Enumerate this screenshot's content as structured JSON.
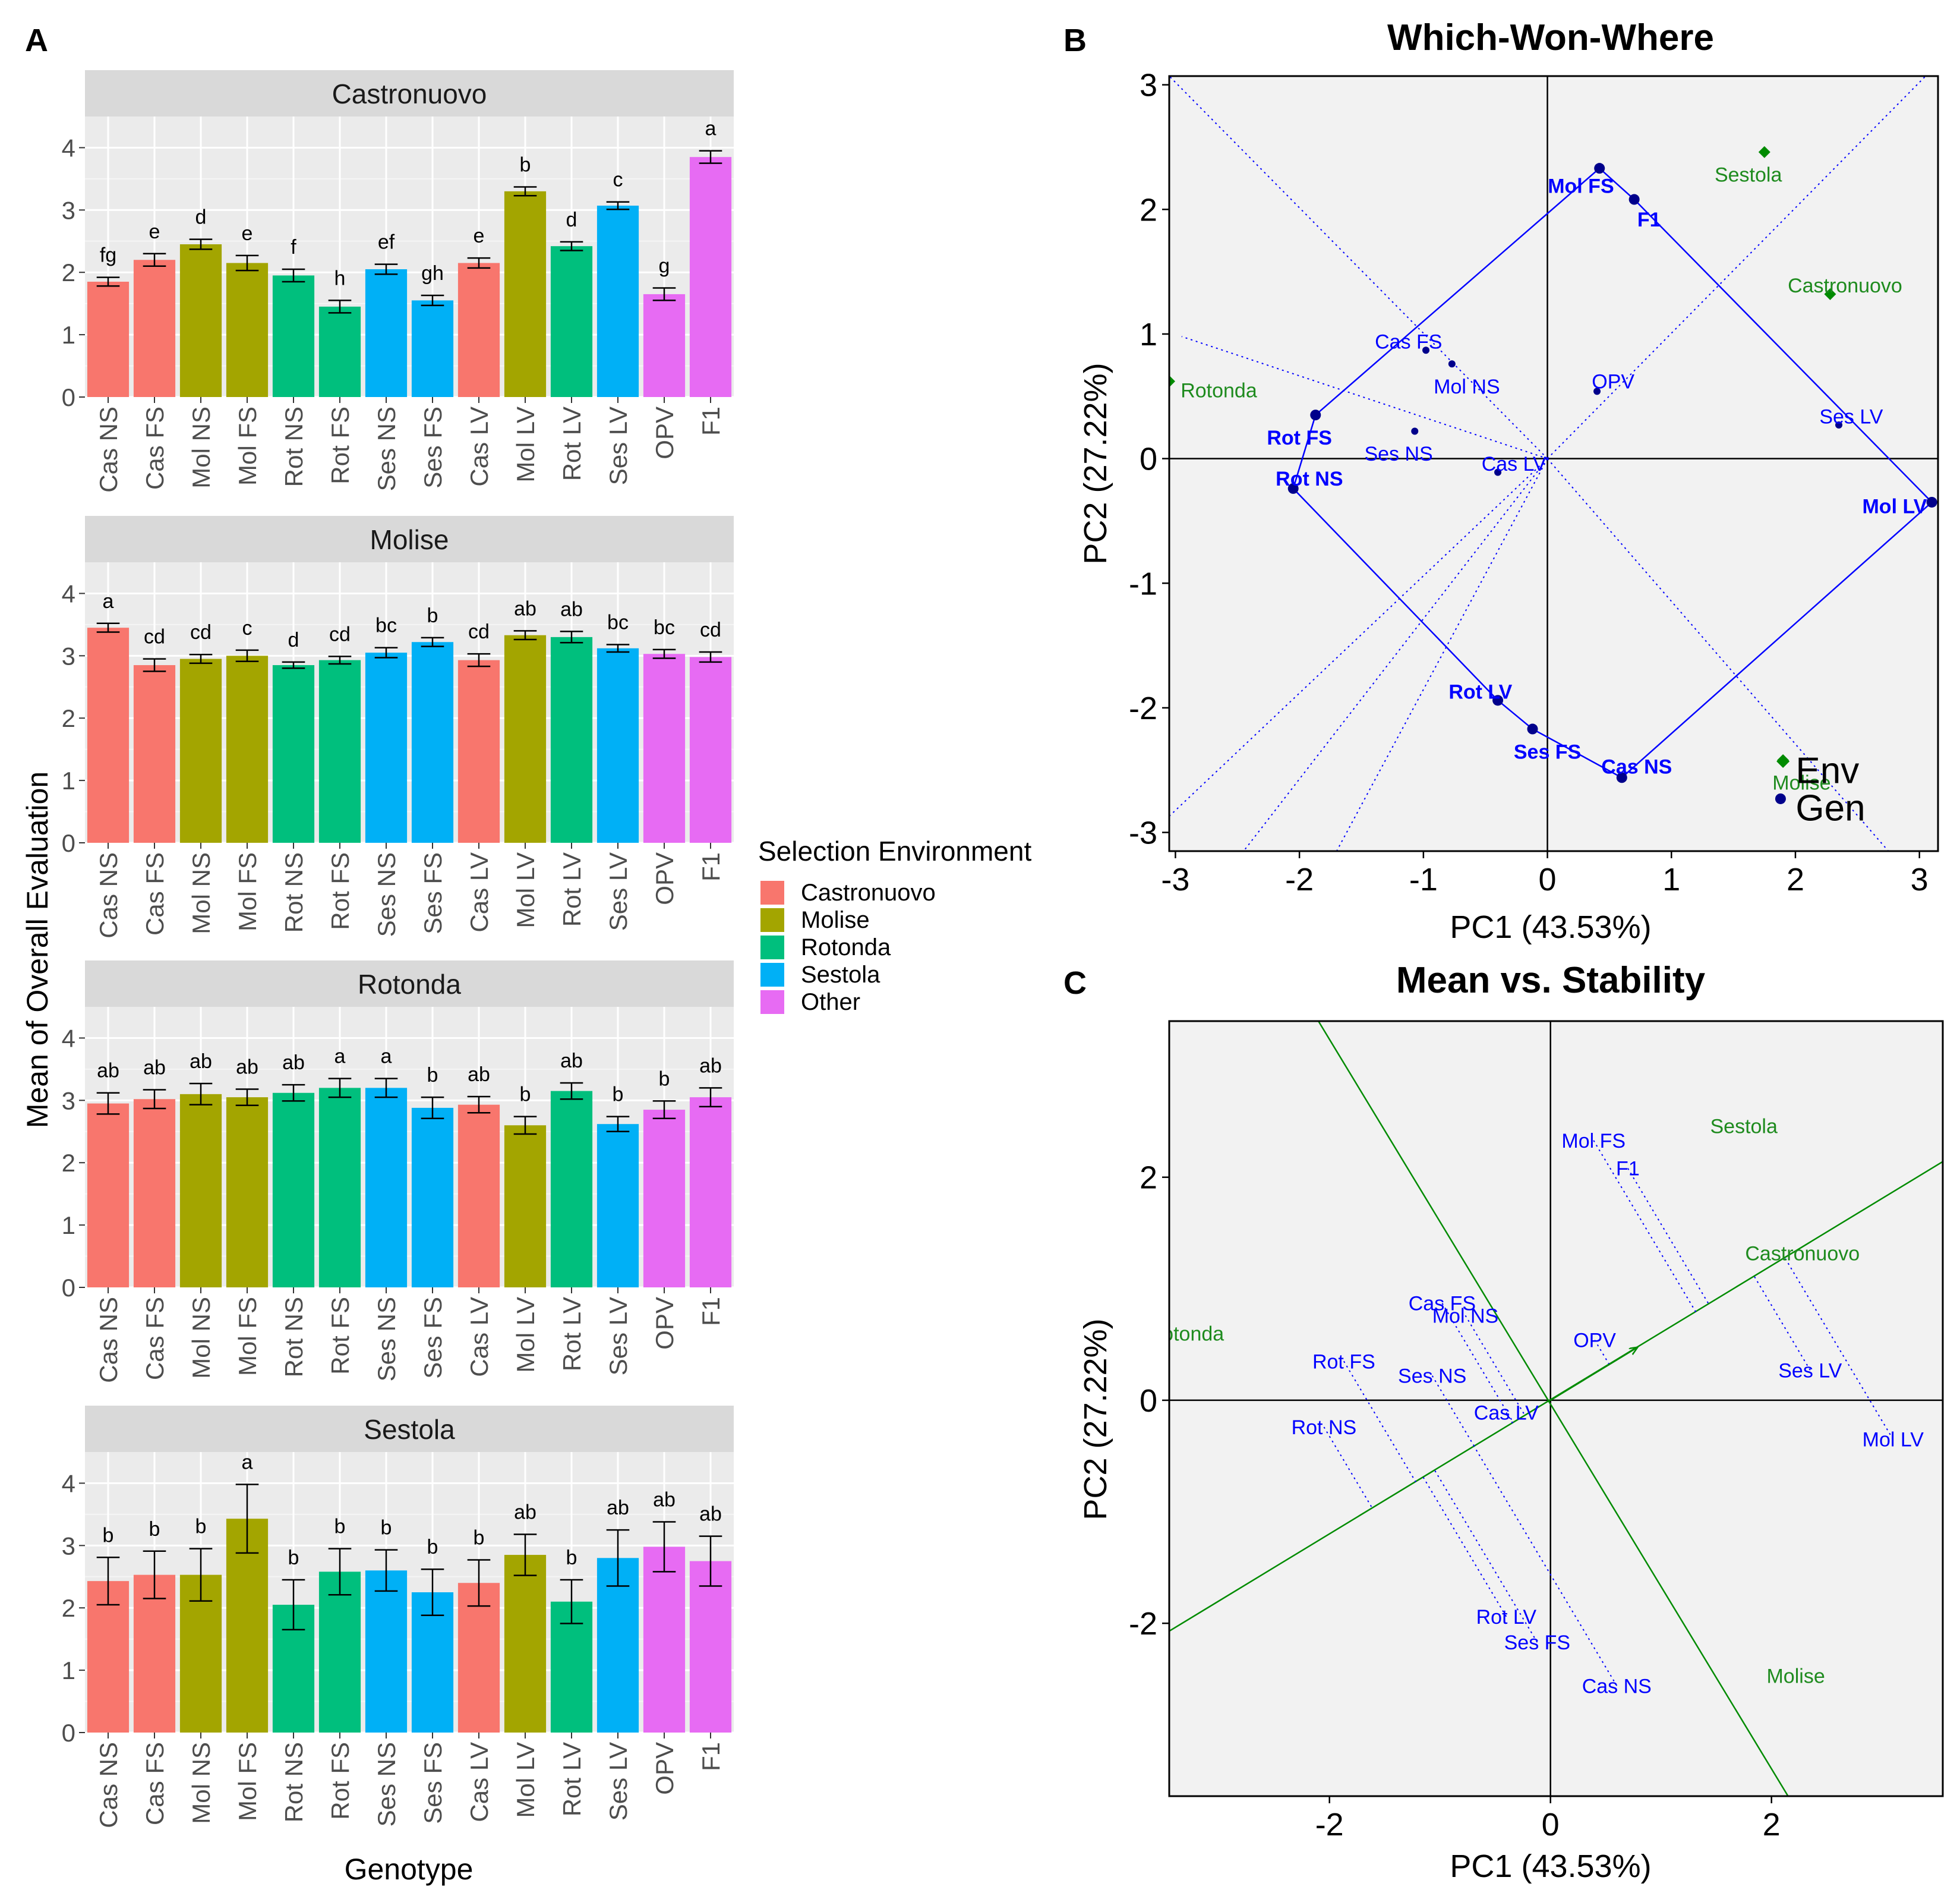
{
  "panel_labels": {
    "a": "A",
    "b": "B",
    "c": "C"
  },
  "colors": {
    "Castronuovo": "#F8766D",
    "Molise": "#A3A500",
    "Rotonda": "#00BF7D",
    "Sestola": "#00B0F6",
    "Other": "#E76BF3",
    "strip": "#D9D9D9",
    "panel_bg": "#EBEBEB",
    "biplot_bg": "#F2F2F2",
    "genotype_blue": "#0000FF",
    "env_green": "#008B00",
    "label_green": "#1E8B1E"
  },
  "legend": {
    "title": "Selection Environment",
    "items": [
      "Castronuovo",
      "Molise",
      "Rotonda",
      "Sestola",
      "Other"
    ]
  },
  "chart_data": [
    {
      "type": "bar",
      "facet_layout": "vertical",
      "ylabel": "Mean of Overall Evaluation",
      "xlabel": "Genotype",
      "ylim": [
        0,
        4.5
      ],
      "yticks": [
        0,
        1,
        2,
        3,
        4
      ],
      "categories": [
        "Cas NS",
        "Cas FS",
        "Mol NS",
        "Mol FS",
        "Rot NS",
        "Rot FS",
        "Ses NS",
        "Ses FS",
        "Cas LV",
        "Mol LV",
        "Rot LV",
        "Ses LV",
        "OPV",
        "F1"
      ],
      "group": [
        "Castronuovo",
        "Castronuovo",
        "Molise",
        "Molise",
        "Rotonda",
        "Rotonda",
        "Sestola",
        "Sestola",
        "Castronuovo",
        "Molise",
        "Rotonda",
        "Sestola",
        "Other",
        "Other"
      ],
      "facets": [
        {
          "name": "Castronuovo",
          "values": [
            1.85,
            2.2,
            2.45,
            2.15,
            1.95,
            1.45,
            2.05,
            1.55,
            2.15,
            3.3,
            2.42,
            3.07,
            1.65,
            3.85
          ],
          "errors": [
            0.07,
            0.1,
            0.08,
            0.12,
            0.1,
            0.1,
            0.08,
            0.08,
            0.08,
            0.07,
            0.07,
            0.06,
            0.1,
            0.1
          ],
          "letters": [
            "fg",
            "e",
            "d",
            "e",
            "f",
            "h",
            "ef",
            "gh",
            "e",
            "b",
            "d",
            "c",
            "g",
            "a"
          ]
        },
        {
          "name": "Molise",
          "values": [
            3.45,
            2.85,
            2.95,
            3.0,
            2.85,
            2.93,
            3.05,
            3.22,
            2.93,
            3.33,
            3.3,
            3.12,
            3.03,
            2.98
          ],
          "errors": [
            0.07,
            0.1,
            0.07,
            0.09,
            0.05,
            0.06,
            0.08,
            0.07,
            0.1,
            0.07,
            0.09,
            0.06,
            0.07,
            0.08
          ],
          "letters": [
            "a",
            "cd",
            "cd",
            "c",
            "d",
            "cd",
            "bc",
            "b",
            "cd",
            "ab",
            "ab",
            "bc",
            "bc",
            "cd"
          ]
        },
        {
          "name": "Rotonda",
          "values": [
            2.95,
            3.02,
            3.1,
            3.05,
            3.12,
            3.2,
            3.2,
            2.88,
            2.93,
            2.6,
            3.15,
            2.62,
            2.85,
            3.05
          ],
          "errors": [
            0.17,
            0.15,
            0.17,
            0.13,
            0.13,
            0.15,
            0.15,
            0.17,
            0.13,
            0.14,
            0.13,
            0.12,
            0.14,
            0.15
          ],
          "letters": [
            "ab",
            "ab",
            "ab",
            "ab",
            "ab",
            "a",
            "a",
            "b",
            "ab",
            "b",
            "ab",
            "b",
            "b",
            "ab"
          ]
        },
        {
          "name": "Sestola",
          "values": [
            2.43,
            2.53,
            2.53,
            3.43,
            2.05,
            2.58,
            2.6,
            2.25,
            2.4,
            2.85,
            2.1,
            2.8,
            2.98,
            2.75
          ],
          "errors": [
            0.38,
            0.38,
            0.42,
            0.55,
            0.4,
            0.37,
            0.33,
            0.37,
            0.37,
            0.33,
            0.35,
            0.45,
            0.4,
            0.4
          ],
          "letters": [
            "b",
            "b",
            "b",
            "a",
            "b",
            "b",
            "b",
            "b",
            "b",
            "ab",
            "b",
            "ab",
            "ab",
            "ab"
          ]
        }
      ]
    },
    {
      "type": "scatter",
      "title": "Which-Won-Where",
      "xlabel": "PC1 (43.53%)",
      "ylabel": "PC2 (27.22%)",
      "xlim": [
        -3.05,
        3.15
      ],
      "ylim": [
        -3.15,
        3.07
      ],
      "xticks": [
        -3,
        -2,
        -1,
        0,
        1,
        2,
        3
      ],
      "yticks": [
        -3,
        -2,
        -1,
        0,
        1,
        2,
        3
      ],
      "genotypes": [
        {
          "label": "Mol FS",
          "x": 0.42,
          "y": 2.33,
          "vertex": true,
          "lx": 0.27,
          "ly": 2.19
        },
        {
          "label": "F1",
          "x": 0.7,
          "y": 2.08,
          "vertex": true,
          "lx": 0.82,
          "ly": 1.92
        },
        {
          "label": "Mol LV",
          "x": 3.1,
          "y": -0.35,
          "vertex": true,
          "lx": 2.8,
          "ly": -0.38
        },
        {
          "label": "Cas NS",
          "x": 0.6,
          "y": -2.56,
          "vertex": true,
          "lx": 0.72,
          "ly": -2.47
        },
        {
          "label": "Ses FS",
          "x": -0.12,
          "y": -2.17,
          "vertex": true,
          "lx": 0.0,
          "ly": -2.35
        },
        {
          "label": "Rot LV",
          "x": -0.4,
          "y": -1.94,
          "vertex": true,
          "lx": -0.54,
          "ly": -1.87
        },
        {
          "label": "Rot NS",
          "x": -2.05,
          "y": -0.24,
          "vertex": true,
          "lx": -1.92,
          "ly": -0.16
        },
        {
          "label": "Rot FS",
          "x": -1.87,
          "y": 0.35,
          "vertex": true,
          "lx": -2.0,
          "ly": 0.17
        },
        {
          "label": "Cas FS",
          "x": -0.98,
          "y": 0.87,
          "vertex": false,
          "lx": -1.12,
          "ly": 0.94
        },
        {
          "label": "Mol NS",
          "x": -0.77,
          "y": 0.76,
          "vertex": false,
          "lx": -0.65,
          "ly": 0.58
        },
        {
          "label": "Ses NS",
          "x": -1.07,
          "y": 0.22,
          "vertex": false,
          "lx": -1.2,
          "ly": 0.04
        },
        {
          "label": "Cas LV",
          "x": -0.4,
          "y": -0.11,
          "vertex": false,
          "lx": -0.27,
          "ly": -0.04
        },
        {
          "label": "OPV",
          "x": 0.4,
          "y": 0.54,
          "vertex": false,
          "lx": 0.53,
          "ly": 0.62
        },
        {
          "label": "Ses LV",
          "x": 2.35,
          "y": 0.27,
          "vertex": false,
          "lx": 2.45,
          "ly": 0.34
        }
      ],
      "hull": [
        "Mol FS",
        "F1",
        "Mol LV",
        "Cas NS",
        "Ses FS",
        "Rot LV",
        "Rot NS",
        "Rot FS"
      ],
      "environments": [
        {
          "label": "Sestola",
          "x": 1.75,
          "y": 2.46,
          "lx": 1.62,
          "ly": 2.28
        },
        {
          "label": "Castronuovo",
          "x": 2.28,
          "y": 1.32,
          "lx": 2.4,
          "ly": 1.39
        },
        {
          "label": "Rotonda",
          "x": -3.05,
          "y": 0.62,
          "lx": -2.65,
          "ly": 0.55
        },
        {
          "label": "Molise",
          "x": 1.9,
          "y": -2.42,
          "lx": 2.05,
          "ly": -2.6
        }
      ],
      "sector_rays": [
        [
          -3.05,
          3.07
        ],
        [
          -2.95,
          0.98
        ],
        [
          -3.05,
          -2.87
        ],
        [
          -2.45,
          -3.15
        ],
        [
          -1.7,
          -3.15
        ],
        [
          3.05,
          3.07
        ],
        [
          2.75,
          -3.15
        ]
      ],
      "key": [
        {
          "label": "Env",
          "x": 1.9,
          "y": -2.43,
          "lx": 2.05,
          "ly": -2.5,
          "color": "env"
        },
        {
          "label": "Gen",
          "x": 1.88,
          "y": -2.73,
          "lx": 2.05,
          "ly": -2.8,
          "color": "gen"
        }
      ]
    },
    {
      "type": "scatter",
      "title": "Mean vs. Stability",
      "xlabel": "PC1 (43.53%)",
      "ylabel": "PC2 (27.22%)",
      "xlim": [
        -3.45,
        3.55
      ],
      "ylim": [
        -3.55,
        3.4
      ],
      "xticks": [
        -2,
        0,
        2
      ],
      "yticks": [
        -2,
        0,
        2
      ],
      "genotypes": [
        {
          "label": "Mol FS",
          "x": 0.39,
          "y": 2.33
        },
        {
          "label": "F1",
          "x": 0.7,
          "y": 2.08
        },
        {
          "label": "Cas FS",
          "x": -0.98,
          "y": 0.87
        },
        {
          "label": "Mol NS",
          "x": -0.77,
          "y": 0.76
        },
        {
          "label": "Rot FS",
          "x": -1.87,
          "y": 0.35
        },
        {
          "label": "Ses NS",
          "x": -1.07,
          "y": 0.22
        },
        {
          "label": "Cas LV",
          "x": -0.4,
          "y": -0.11
        },
        {
          "label": "OPV",
          "x": 0.4,
          "y": 0.54
        },
        {
          "label": "Ses LV",
          "x": 2.35,
          "y": 0.27
        },
        {
          "label": "Mol LV",
          "x": 3.1,
          "y": -0.35
        },
        {
          "label": "Rot NS",
          "x": -2.05,
          "y": -0.24
        },
        {
          "label": "Rot LV",
          "x": -0.4,
          "y": -1.94
        },
        {
          "label": "Ses FS",
          "x": -0.12,
          "y": -2.17
        },
        {
          "label": "Cas NS",
          "x": 0.6,
          "y": -2.56
        }
      ],
      "environments": [
        {
          "label": "Sestola",
          "x": 1.75,
          "y": 2.46
        },
        {
          "label": "Castronuovo",
          "x": 2.28,
          "y": 1.32
        },
        {
          "label": "Rotonda",
          "x": -3.3,
          "y": 0.6
        },
        {
          "label": "Molise",
          "x": 2.22,
          "y": -2.47
        }
      ],
      "aea_axis": [
        [
          -3.45,
          -2.07
        ],
        [
          3.55,
          2.14
        ]
      ],
      "perpendicular_axis": [
        [
          -2.1,
          3.4
        ],
        [
          2.15,
          -3.55
        ]
      ],
      "arrow": {
        "from": [
          0,
          0
        ],
        "to": [
          0.78,
          0.47
        ]
      }
    }
  ]
}
